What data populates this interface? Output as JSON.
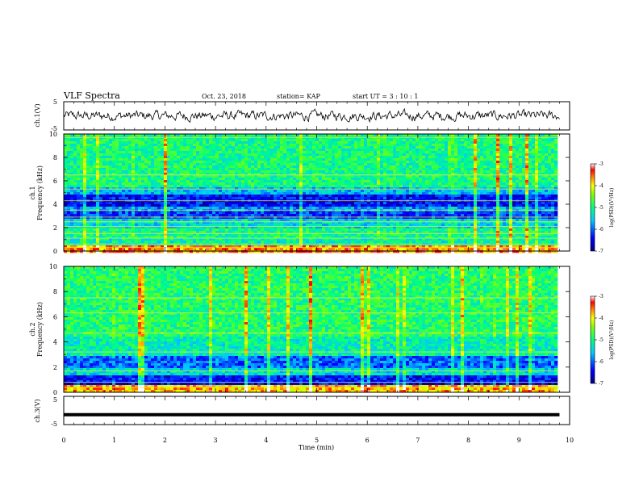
{
  "header": {
    "title": "VLF Spectra",
    "date": "Oct. 23, 2018",
    "station": "station= KAP",
    "start": "start  UT =   3  : 10 : 1"
  },
  "chart_data": [
    {
      "id": "ch1-waveform",
      "type": "line",
      "ylabel": "ch.1(V)",
      "ylim": [
        -5,
        5
      ],
      "yticks": [
        "5",
        "-5"
      ],
      "xlim": [
        0,
        10
      ],
      "description_values": "noisy waveform around 0 V, amplitude about ±2 V, from 0 to 9.8 min"
    },
    {
      "id": "ch1-spectrogram",
      "type": "heatmap",
      "ylabel": "ch.1\nFrequency (kHz)",
      "ylabel_lines": [
        "ch.1",
        "Frequency (kHz)"
      ],
      "ylim": [
        0,
        10
      ],
      "yticks": [
        "0",
        "2",
        "4",
        "6",
        "8",
        "10"
      ],
      "xlim": [
        0,
        10
      ],
      "data_extent_x": [
        0,
        9.8
      ],
      "bands": [
        {
          "from": 0,
          "to": 0.7,
          "level": -3.6
        },
        {
          "from": 0.7,
          "to": 1.2,
          "level": -5.2
        },
        {
          "from": 1.2,
          "to": 2.0,
          "level": -5.0
        },
        {
          "from": 2.0,
          "to": 2.8,
          "level": -5.4
        },
        {
          "from": 2.8,
          "to": 3.4,
          "level": -6.2
        },
        {
          "from": 3.4,
          "to": 3.8,
          "level": -5.8
        },
        {
          "from": 3.8,
          "to": 4.8,
          "level": -6.4
        },
        {
          "from": 4.8,
          "to": 5.6,
          "level": -5.6
        },
        {
          "from": 5.6,
          "to": 10,
          "level": -5.0
        }
      ],
      "lines_khz": [
        0.3,
        0.6,
        1.1,
        1.5,
        2.1,
        2.5,
        2.9,
        3.5,
        4.3,
        5.3,
        6.5,
        9.7
      ],
      "colorbar": {
        "label": "log(PSD)(V²/Hz)",
        "range": [
          -7,
          -3
        ],
        "ticks": [
          "-3",
          "-4",
          "-5",
          "-6",
          "-7"
        ]
      }
    },
    {
      "id": "ch2-spectrogram",
      "type": "heatmap",
      "ylabel_lines": [
        "ch.2",
        "Frequency (kHz)"
      ],
      "ylim": [
        0,
        10
      ],
      "yticks": [
        "0",
        "2",
        "4",
        "6",
        "8",
        "10"
      ],
      "xlim": [
        0,
        10
      ],
      "data_extent_x": [
        0,
        9.8
      ],
      "bands": [
        {
          "from": 0,
          "to": 0.6,
          "level": -3.8
        },
        {
          "from": 0.6,
          "to": 1.3,
          "level": -6.4
        },
        {
          "from": 1.3,
          "to": 2.0,
          "level": -5.4
        },
        {
          "from": 2.0,
          "to": 2.9,
          "level": -6.0
        },
        {
          "from": 2.9,
          "to": 4.5,
          "level": -5.2
        },
        {
          "from": 4.5,
          "to": 10,
          "level": -4.9
        }
      ],
      "lines_khz": [
        0.4,
        0.8,
        1.7,
        3.2,
        4.7,
        6.3,
        7.5
      ],
      "colorbar": {
        "label": "log(PSD)(V²/Hz)",
        "range": [
          -7,
          -3
        ],
        "ticks": [
          "-3",
          "-4",
          "-5",
          "-6",
          "-7"
        ]
      }
    },
    {
      "id": "ch3-waveform",
      "type": "line",
      "ylabel": "ch.3(V)",
      "ylim": [
        -5,
        5
      ],
      "yticks": [
        "5",
        "-5"
      ],
      "xlim": [
        0,
        10
      ],
      "constant_value": -1.5,
      "x_end": 9.8
    }
  ],
  "xaxis": {
    "label": "Time (min)",
    "ticks": [
      "0",
      "1",
      "2",
      "3",
      "4",
      "5",
      "6",
      "7",
      "8",
      "9",
      "10"
    ]
  },
  "colors": {
    "colormap": [
      "#00007f",
      "#0000ff",
      "#00bfff",
      "#00ffbf",
      "#7fff00",
      "#ffff00",
      "#ff7f00",
      "#ff0000",
      "#ffffff"
    ]
  }
}
